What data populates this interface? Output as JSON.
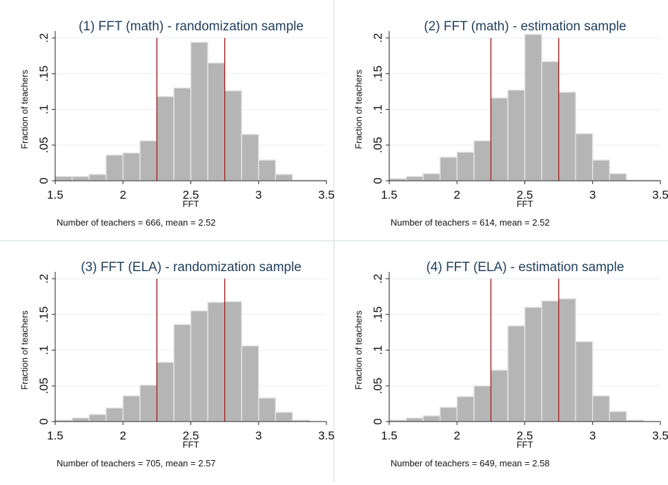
{
  "chart_data": [
    {
      "type": "bar",
      "title": "(1) FFT (math) - randomization sample",
      "xlabel": "FFT",
      "ylabel": "Fraction of teachers",
      "note": "Number of teachers = 666, mean = 2.52",
      "xlim": [
        1.5,
        3.5
      ],
      "ylim": [
        0,
        0.2
      ],
      "xticks": [
        "1.5",
        "2",
        "2.5",
        "3",
        "3.5"
      ],
      "yticks": [
        ".2",
        ".15",
        ".1",
        ".05",
        "0"
      ],
      "bin_width": 0.125,
      "bin_start": 1.5,
      "values": [
        0.006,
        0.006,
        0.009,
        0.036,
        0.039,
        0.056,
        0.118,
        0.13,
        0.194,
        0.165,
        0.126,
        0.065,
        0.029,
        0.009,
        0.001,
        0.001
      ],
      "vlines": [
        2.25,
        2.75
      ],
      "vline_color": "#9b1c1c",
      "bar_color": "#b5b5b5"
    },
    {
      "type": "bar",
      "title": "(2) FFT (math) - estimation sample",
      "xlabel": "FFT",
      "ylabel": "Fraction of teachers",
      "note": "Number of teachers = 614, mean = 2.52",
      "xlim": [
        1.5,
        3.5
      ],
      "ylim": [
        0,
        0.2
      ],
      "xticks": [
        "1.5",
        "2",
        "2.5",
        "3",
        "3.5"
      ],
      "yticks": [
        ".2",
        ".15",
        ".1",
        ".05",
        "0"
      ],
      "bin_width": 0.125,
      "bin_start": 1.5,
      "values": [
        0.003,
        0.006,
        0.01,
        0.033,
        0.04,
        0.056,
        0.116,
        0.127,
        0.205,
        0.167,
        0.124,
        0.066,
        0.029,
        0.01,
        0.001,
        0.001
      ],
      "vlines": [
        2.25,
        2.75
      ],
      "vline_color": "#9b1c1c",
      "bar_color": "#b5b5b5"
    },
    {
      "type": "bar",
      "title": "(3) FFT (ELA) - randomization sample",
      "xlabel": "FFT",
      "ylabel": "Fraction of teachers",
      "note": "Number of teachers = 705, mean = 2.57",
      "xlim": [
        1.5,
        3.5
      ],
      "ylim": [
        0,
        0.2
      ],
      "xticks": [
        "1.5",
        "2",
        "2.5",
        "3",
        "3.5"
      ],
      "yticks": [
        ".2",
        ".15",
        ".1",
        ".05",
        "0"
      ],
      "bin_width": 0.125,
      "bin_start": 1.5,
      "values": [
        0.002,
        0.005,
        0.01,
        0.019,
        0.036,
        0.051,
        0.083,
        0.136,
        0.155,
        0.167,
        0.168,
        0.106,
        0.033,
        0.013,
        0.002
      ],
      "vlines": [
        2.25,
        2.75
      ],
      "vline_color": "#9b1c1c",
      "bar_color": "#b5b5b5"
    },
    {
      "type": "bar",
      "title": "(4) FFT (ELA) - estimation sample",
      "xlabel": "FFT",
      "ylabel": "Fraction of teachers",
      "note": "Number of teachers = 649, mean = 2.58",
      "xlim": [
        1.5,
        3.5
      ],
      "ylim": [
        0,
        0.2
      ],
      "xticks": [
        "1.5",
        "2",
        "2.5",
        "3",
        "3.5"
      ],
      "yticks": [
        ".2",
        ".15",
        ".1",
        ".05",
        "0"
      ],
      "bin_width": 0.125,
      "bin_start": 1.5,
      "values": [
        0.002,
        0.005,
        0.008,
        0.02,
        0.035,
        0.05,
        0.072,
        0.134,
        0.16,
        0.169,
        0.172,
        0.112,
        0.036,
        0.014,
        0.002
      ],
      "vlines": [
        2.25,
        2.75
      ],
      "vline_color": "#9b1c1c",
      "bar_color": "#b5b5b5"
    }
  ]
}
